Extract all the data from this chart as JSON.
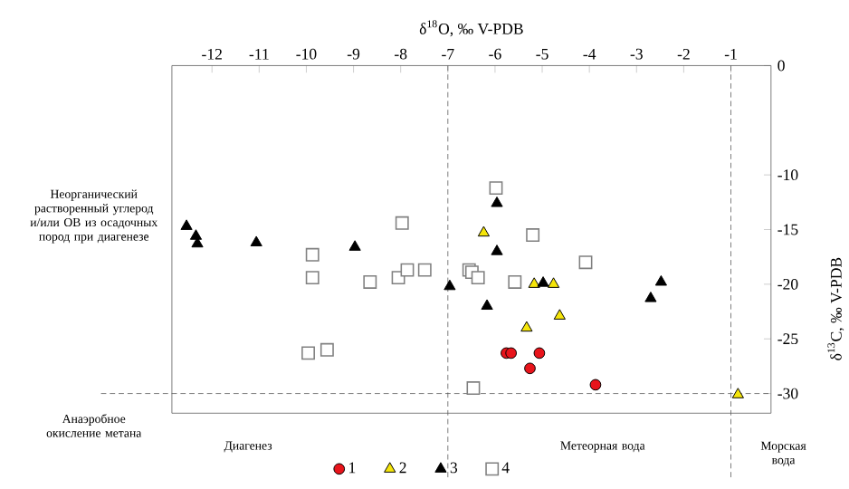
{
  "chart_data": {
    "type": "scatter",
    "xlabel": "δ$^{18}$O, ‰ V-PDB",
    "ylabel": "δ$^{13}$C, ‰ V-PDB",
    "xlim": [
      -12.85,
      -0.15
    ],
    "ylim": [
      -31.8,
      0
    ],
    "xticks": [
      -12,
      -11,
      -10,
      -9,
      -8,
      -7,
      -6,
      -5,
      -4,
      -3,
      -2,
      -1
    ],
    "yticks": [
      0,
      -10,
      -15,
      -20,
      -25,
      -30
    ],
    "legend": "bottom",
    "ref_lines": [
      {
        "axis": "x",
        "value": -7,
        "line_style": "dashed"
      },
      {
        "axis": "x",
        "value": -1,
        "line_style": "dashed"
      },
      {
        "axis": "y",
        "value": -30,
        "line_style": "dashed"
      }
    ],
    "annotations": [
      "Неорганический растворенный углерод и/или ОВ из осадочных пород при диагенезе",
      "Анаэробное окисление метана",
      "Диагенез",
      "Метеорная вода",
      "Морская вода"
    ],
    "series": [
      {
        "name": "1",
        "color": "#e8141b",
        "marker": "circle",
        "x": [
          -5.76,
          -5.66,
          -5.06,
          -5.26,
          -3.87
        ],
        "values": [
          -26.3,
          -26.3,
          -26.3,
          -27.7,
          -29.2
        ]
      },
      {
        "name": "2",
        "color": "#f5e50a",
        "marker": "triangle",
        "x": [
          -6.24,
          -5.17,
          -4.76,
          -5.33,
          -4.63,
          -0.85
        ],
        "values": [
          -15.3,
          -20.0,
          -20.0,
          -24.0,
          -22.9,
          -30.1
        ]
      },
      {
        "name": "3",
        "color": "#000000",
        "marker": "triangle",
        "x": [
          -12.54,
          -12.34,
          -12.31,
          -11.06,
          -8.97,
          -5.96,
          -5.96,
          -4.98,
          -6.96,
          -6.17,
          -2.7,
          -2.48
        ],
        "values": [
          -14.7,
          -15.6,
          -16.3,
          -16.2,
          -16.6,
          -12.6,
          -17.0,
          -19.9,
          -20.2,
          -22.0,
          -21.3,
          -19.8
        ]
      },
      {
        "name": "4",
        "color": "#808080",
        "marker": "square",
        "x": [
          -7.97,
          -9.87,
          -9.87,
          -8.65,
          -8.05,
          -7.86,
          -7.49,
          -5.98,
          -5.2,
          -4.08,
          -6.55,
          -6.49,
          -6.36,
          -5.58,
          -9.96,
          -9.56,
          -6.46
        ],
        "values": [
          -14.4,
          -17.3,
          -19.4,
          -19.8,
          -19.4,
          -18.7,
          -18.7,
          -11.2,
          -15.5,
          -18.0,
          -18.7,
          -18.9,
          -19.4,
          -19.8,
          -26.3,
          -26.0,
          -29.5
        ]
      }
    ]
  }
}
